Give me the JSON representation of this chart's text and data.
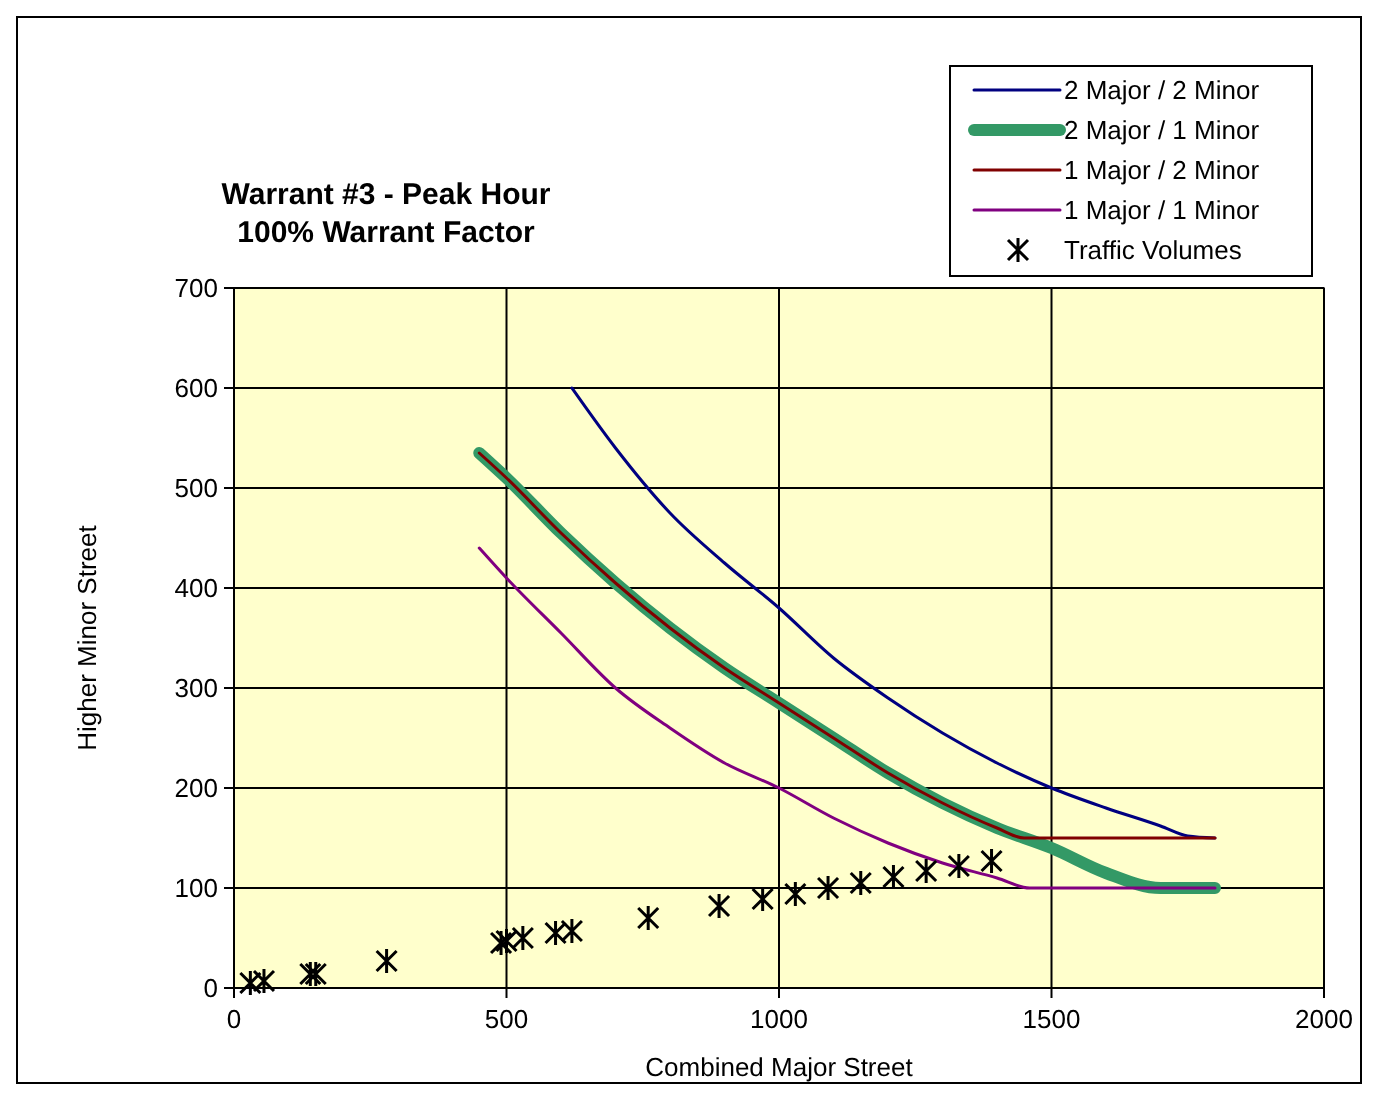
{
  "chart_data": {
    "type": "line",
    "title": "Warrant #3 - Peak Hour\n100% Warrant Factor",
    "xlabel": "Combined Major Street",
    "ylabel": "Higher Minor Street",
    "xlim": [
      0,
      2000
    ],
    "ylim": [
      0,
      700
    ],
    "xticks": [
      0,
      500,
      1000,
      1500,
      2000
    ],
    "yticks": [
      0,
      100,
      200,
      300,
      400,
      500,
      600,
      700
    ],
    "grid": true,
    "legend": "top right",
    "marker": "none",
    "series": [
      {
        "name": "2 Major / 2 Minor",
        "color": "#000080",
        "x": [
          620,
          700,
          800,
          900,
          1000,
          1100,
          1200,
          1300,
          1400,
          1500,
          1600,
          1700,
          1750,
          1800
        ],
        "values": [
          600,
          540,
          475,
          425,
          380,
          330,
          290,
          255,
          225,
          200,
          180,
          162,
          152,
          150
        ]
      },
      {
        "name": "2 Major / 1 Minor",
        "color": "#339966",
        "x": [
          450,
          500,
          600,
          700,
          800,
          900,
          1000,
          1100,
          1200,
          1300,
          1400,
          1500,
          1600,
          1700,
          1800
        ],
        "values": [
          535,
          510,
          455,
          405,
          360,
          320,
          285,
          250,
          215,
          185,
          160,
          140,
          115,
          100,
          100
        ]
      },
      {
        "name": "1 Major / 2 Minor",
        "color": "#800000",
        "x": [
          450,
          500,
          600,
          700,
          800,
          900,
          1000,
          1100,
          1200,
          1300,
          1400,
          1450,
          1800
        ],
        "values": [
          535,
          510,
          455,
          405,
          360,
          320,
          285,
          250,
          215,
          185,
          160,
          150,
          150
        ]
      },
      {
        "name": "1 Major / 1 Minor",
        "color": "#800080",
        "x": [
          450,
          500,
          600,
          700,
          800,
          900,
          1000,
          1100,
          1200,
          1300,
          1400,
          1460,
          1800
        ],
        "values": [
          440,
          410,
          355,
          300,
          260,
          225,
          200,
          170,
          145,
          125,
          110,
          100,
          100
        ]
      },
      {
        "name": "Traffic Volumes",
        "type": "scatter",
        "marker": "cross",
        "color": "#000000",
        "x": [
          30,
          55,
          140,
          150,
          280,
          490,
          500,
          530,
          590,
          620,
          760,
          890,
          970,
          1030,
          1090,
          1150,
          1210,
          1270,
          1330,
          1390
        ],
        "values": [
          5,
          7,
          14,
          14,
          27,
          45,
          47,
          50,
          55,
          57,
          70,
          82,
          89,
          94,
          100,
          105,
          111,
          117,
          122,
          127
        ]
      }
    ]
  }
}
